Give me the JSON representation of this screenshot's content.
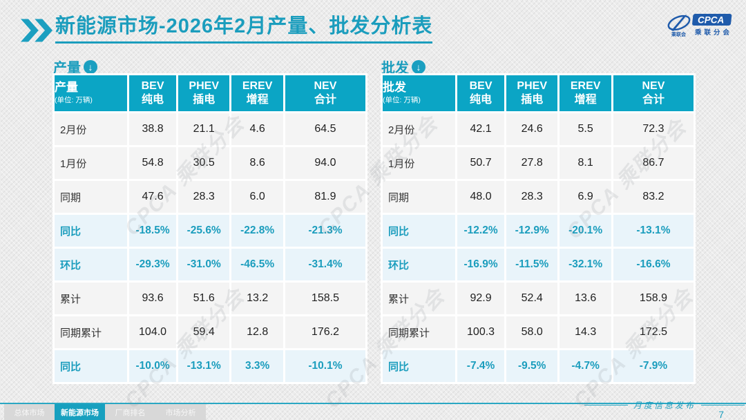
{
  "page": {
    "title_bold": "新能源市场",
    "title_rest": "-2026年2月产量、批发分析表",
    "footer_note": "月度信息发布",
    "page_number": "7",
    "watermark": "CPCA 乘联分会",
    "logo": {
      "text": "CPCA",
      "subtext": "乘联分会",
      "mini": "乘联会"
    },
    "down_arrow": "↓"
  },
  "colors": {
    "accent_teal": "#1b9dbd",
    "header_bg": "#0ba5c5",
    "highlight_row_bg": "#e9f4fa",
    "cell_bg": "#f4f4f4",
    "tab_inactive_bg": "#d8d8d8",
    "logo_blue": "#1f5bab"
  },
  "tabs": [
    {
      "label": "总体市场",
      "active": false
    },
    {
      "label": "新能源市场",
      "active": true
    },
    {
      "label": "厂商排名",
      "active": false
    },
    {
      "label": "市场分析",
      "active": false
    }
  ],
  "tables": [
    {
      "section_label": "产量",
      "corner_label": "产量",
      "unit": "(单位: 万辆)",
      "columns": [
        {
          "en": "BEV",
          "zh": "纯电"
        },
        {
          "en": "PHEV",
          "zh": "插电"
        },
        {
          "en": "EREV",
          "zh": "增程"
        },
        {
          "en": "NEV",
          "zh": "合计"
        }
      ],
      "rows": [
        {
          "label": "2月份",
          "values": [
            "38.8",
            "21.1",
            "4.6",
            "64.5"
          ],
          "highlight": false
        },
        {
          "label": "1月份",
          "values": [
            "54.8",
            "30.5",
            "8.6",
            "94.0"
          ],
          "highlight": false
        },
        {
          "label": "同期",
          "values": [
            "47.6",
            "28.3",
            "6.0",
            "81.9"
          ],
          "highlight": false
        },
        {
          "label": "同比",
          "values": [
            "-18.5%",
            "-25.6%",
            "-22.8%",
            "-21.3%"
          ],
          "highlight": true
        },
        {
          "label": "环比",
          "values": [
            "-29.3%",
            "-31.0%",
            "-46.5%",
            "-31.4%"
          ],
          "highlight": true
        },
        {
          "label": "累计",
          "values": [
            "93.6",
            "51.6",
            "13.2",
            "158.5"
          ],
          "highlight": false
        },
        {
          "label": "同期累计",
          "values": [
            "104.0",
            "59.4",
            "12.8",
            "176.2"
          ],
          "highlight": false
        },
        {
          "label": "同比",
          "values": [
            "-10.0%",
            "-13.1%",
            "3.3%",
            "-10.1%"
          ],
          "highlight": true
        }
      ]
    },
    {
      "section_label": "批发",
      "corner_label": "批发",
      "unit": "(单位: 万辆)",
      "columns": [
        {
          "en": "BEV",
          "zh": "纯电"
        },
        {
          "en": "PHEV",
          "zh": "插电"
        },
        {
          "en": "EREV",
          "zh": "增程"
        },
        {
          "en": "NEV",
          "zh": "合计"
        }
      ],
      "rows": [
        {
          "label": "2月份",
          "values": [
            "42.1",
            "24.6",
            "5.5",
            "72.3"
          ],
          "highlight": false
        },
        {
          "label": "1月份",
          "values": [
            "50.7",
            "27.8",
            "8.1",
            "86.7"
          ],
          "highlight": false
        },
        {
          "label": "同期",
          "values": [
            "48.0",
            "28.3",
            "6.9",
            "83.2"
          ],
          "highlight": false
        },
        {
          "label": "同比",
          "values": [
            "-12.2%",
            "-12.9%",
            "-20.1%",
            "-13.1%"
          ],
          "highlight": true
        },
        {
          "label": "环比",
          "values": [
            "-16.9%",
            "-11.5%",
            "-32.1%",
            "-16.6%"
          ],
          "highlight": true
        },
        {
          "label": "累计",
          "values": [
            "92.9",
            "52.4",
            "13.6",
            "158.9"
          ],
          "highlight": false
        },
        {
          "label": "同期累计",
          "values": [
            "100.3",
            "58.0",
            "14.3",
            "172.5"
          ],
          "highlight": false
        },
        {
          "label": "同比",
          "values": [
            "-7.4%",
            "-9.5%",
            "-4.7%",
            "-7.9%"
          ],
          "highlight": true
        }
      ]
    }
  ]
}
